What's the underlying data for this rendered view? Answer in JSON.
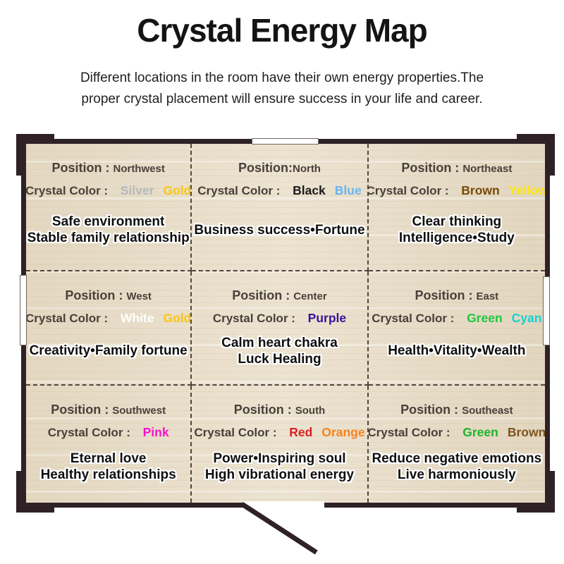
{
  "header": {
    "title": "Crystal Energy Map",
    "subtitle_line1": "Different locations in the room have their own energy properties.The",
    "subtitle_line2": "proper crystal placement will ensure success in your life and career."
  },
  "map": {
    "crystal_color_label": "Crystal Color : ",
    "cells": [
      {
        "id": "northwest",
        "position_label": "Position : ",
        "position": "Northwest",
        "colors": [
          {
            "name": "Silver",
            "hex": "#b5b8bd"
          },
          {
            "name": "Gold",
            "hex": "#fcc60e"
          }
        ],
        "props": {
          "line1": "Safe environment",
          "line2": "Stable family relationship"
        }
      },
      {
        "id": "north",
        "position_label": "Position:",
        "position": "North",
        "colors": [
          {
            "name": "Black",
            "hex": "#1b1b1b"
          },
          {
            "name": "Blue",
            "hex": "#68b6f3"
          }
        ],
        "props": {
          "line1": "Business success•Fortune"
        }
      },
      {
        "id": "northeast",
        "position_label": "Position : ",
        "position": "Northeast",
        "colors": [
          {
            "name": "Brown",
            "hex": "#794a08"
          },
          {
            "name": "Yellow",
            "hex": "#ffe70a"
          }
        ],
        "props": {
          "line1": "Clear thinking",
          "line2": "Intelligence•Study"
        }
      },
      {
        "id": "west",
        "position_label": "Position : ",
        "position": "West",
        "colors": [
          {
            "name": "White",
            "hex": "#ffffff"
          },
          {
            "name": "Gold",
            "hex": "#fcc60e"
          }
        ],
        "props": {
          "line1": "Creativity•Family fortune"
        }
      },
      {
        "id": "center",
        "position_label": "Position : ",
        "position": "Center",
        "colors": [
          {
            "name": "Purple",
            "hex": "#39129b"
          }
        ],
        "props": {
          "line1": "Calm heart chakra",
          "line2": "Luck Healing"
        }
      },
      {
        "id": "east",
        "position_label": "Position : ",
        "position": "East",
        "colors": [
          {
            "name": "Green",
            "hex": "#1fc83f"
          },
          {
            "name": "Cyan",
            "hex": "#12d1d4"
          }
        ],
        "props": {
          "line1": "Health•Vitality•Wealth"
        }
      },
      {
        "id": "southwest",
        "position_label": "Position : ",
        "position": "Southwest",
        "colors": [
          {
            "name": "Pink",
            "hex": "#fb10cd"
          }
        ],
        "props": {
          "line1": "Eternal love",
          "line2": "Healthy relationships"
        }
      },
      {
        "id": "south",
        "position_label": "Position : ",
        "position": "South",
        "colors": [
          {
            "name": "Red",
            "hex": "#df1f1f"
          },
          {
            "name": "Orange",
            "hex": "#f8821d"
          }
        ],
        "props": {
          "line1": "Power•Inspiring soul",
          "line2": "High vibrational energy"
        }
      },
      {
        "id": "southeast",
        "position_label": "Position : ",
        "position": "Southeast",
        "colors": [
          {
            "name": "Green",
            "hex": "#1db32a"
          },
          {
            "name": "Brown",
            "hex": "#7d5420"
          }
        ],
        "props": {
          "line1": "Reduce negative emotions",
          "line2": "Live harmoniously"
        }
      }
    ]
  }
}
